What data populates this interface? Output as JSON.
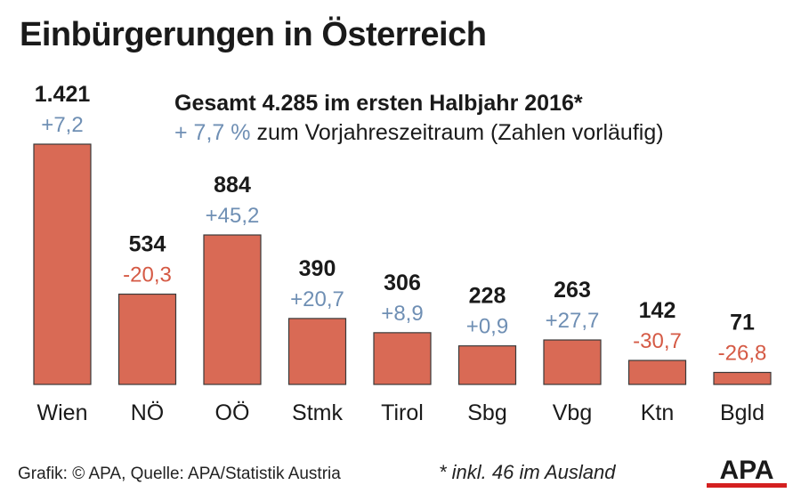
{
  "title": "Einbürgerungen in Österreich",
  "summary": {
    "line1": "Gesamt 4.285 im ersten Halbjahr 2016*",
    "pct": "+ 7,7 %",
    "rest": "zum Vorjahreszeitraum (Zahlen vorläufig)"
  },
  "footer": {
    "source": "Grafik: © APA, Quelle: APA/Statistik Austria",
    "note": "* inkl. 46 im Ausland",
    "logo_text": "APA"
  },
  "colors": {
    "bar": "#d96a55",
    "bar_stroke": "#3a3a3a",
    "positive": "#6f8fb4",
    "negative": "#d55a45"
  },
  "chart_data": {
    "type": "bar",
    "title": "Einbürgerungen in Österreich",
    "categories": [
      "Wien",
      "NÖ",
      "OÖ",
      "Stmk",
      "Tirol",
      "Sbg",
      "Vbg",
      "Ktn",
      "Bgld"
    ],
    "values": [
      1421,
      534,
      884,
      390,
      306,
      228,
      263,
      142,
      71
    ],
    "value_labels": [
      "1.421",
      "534",
      "884",
      "390",
      "306",
      "228",
      "263",
      "142",
      "71"
    ],
    "changes": [
      7.2,
      -20.3,
      45.2,
      20.7,
      8.9,
      0.9,
      27.7,
      -30.7,
      -26.8
    ],
    "change_labels": [
      "+7,2",
      "-20,3",
      "+45,2",
      "+20,7",
      "+8,9",
      "+0,9",
      "+27,7",
      "-30,7",
      "-26,8"
    ],
    "xlabel": "",
    "ylabel": "",
    "ylim": [
      0,
      1421
    ],
    "grid": false,
    "legend": "none"
  }
}
